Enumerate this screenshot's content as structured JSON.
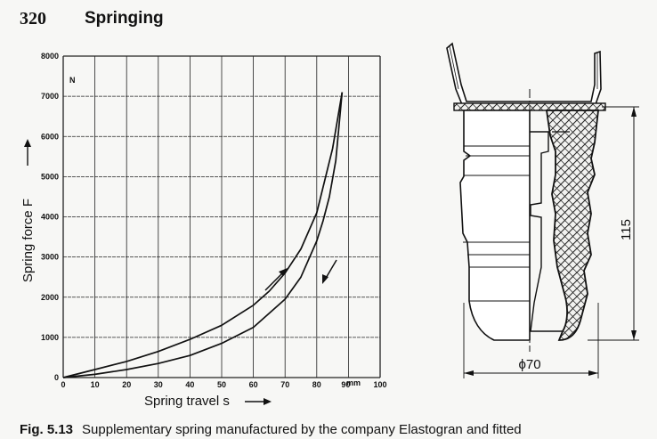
{
  "page": {
    "number": "320",
    "section_title": "Springing"
  },
  "chart_data": {
    "type": "line",
    "xlabel": "Spring travel s",
    "ylabel": "Spring force F",
    "x_unit": "mm",
    "y_unit": "N",
    "xlim": [
      0,
      100
    ],
    "ylim": [
      0,
      8000
    ],
    "x_ticks": [
      0,
      10,
      20,
      30,
      40,
      50,
      60,
      70,
      80,
      90,
      100
    ],
    "y_ticks": [
      0,
      1000,
      2000,
      3000,
      4000,
      5000,
      6000,
      7000,
      8000
    ],
    "x_tick_labels": [
      "0",
      "10",
      "20",
      "30",
      "40",
      "50",
      "60",
      "70",
      "80",
      "90",
      "100"
    ],
    "y_tick_labels": [
      "0",
      "1000",
      "2000",
      "3000",
      "4000",
      "5000",
      "6000",
      "7000",
      "8000"
    ],
    "grid": true,
    "series": [
      {
        "direction": "loading",
        "x": [
          0,
          10,
          20,
          30,
          40,
          50,
          60,
          65,
          70,
          75,
          80,
          85,
          88
        ],
        "y": [
          0,
          200,
          400,
          650,
          950,
          1300,
          1800,
          2150,
          2600,
          3200,
          4100,
          5700,
          7100
        ]
      },
      {
        "direction": "unloading",
        "x": [
          88,
          86,
          84,
          82,
          80,
          75,
          70,
          60,
          50,
          40,
          30,
          20,
          10,
          0
        ],
        "y": [
          7100,
          5400,
          4500,
          3900,
          3400,
          2500,
          1950,
          1250,
          850,
          550,
          350,
          200,
          80,
          0
        ]
      }
    ]
  },
  "drawing": {
    "height_dimension": "115",
    "diameter_dimension": "ϕ70"
  },
  "caption": {
    "figure_label": "Fig. 5.13",
    "text": "Supplementary spring manufactured by the company Elastogran and fitted"
  }
}
